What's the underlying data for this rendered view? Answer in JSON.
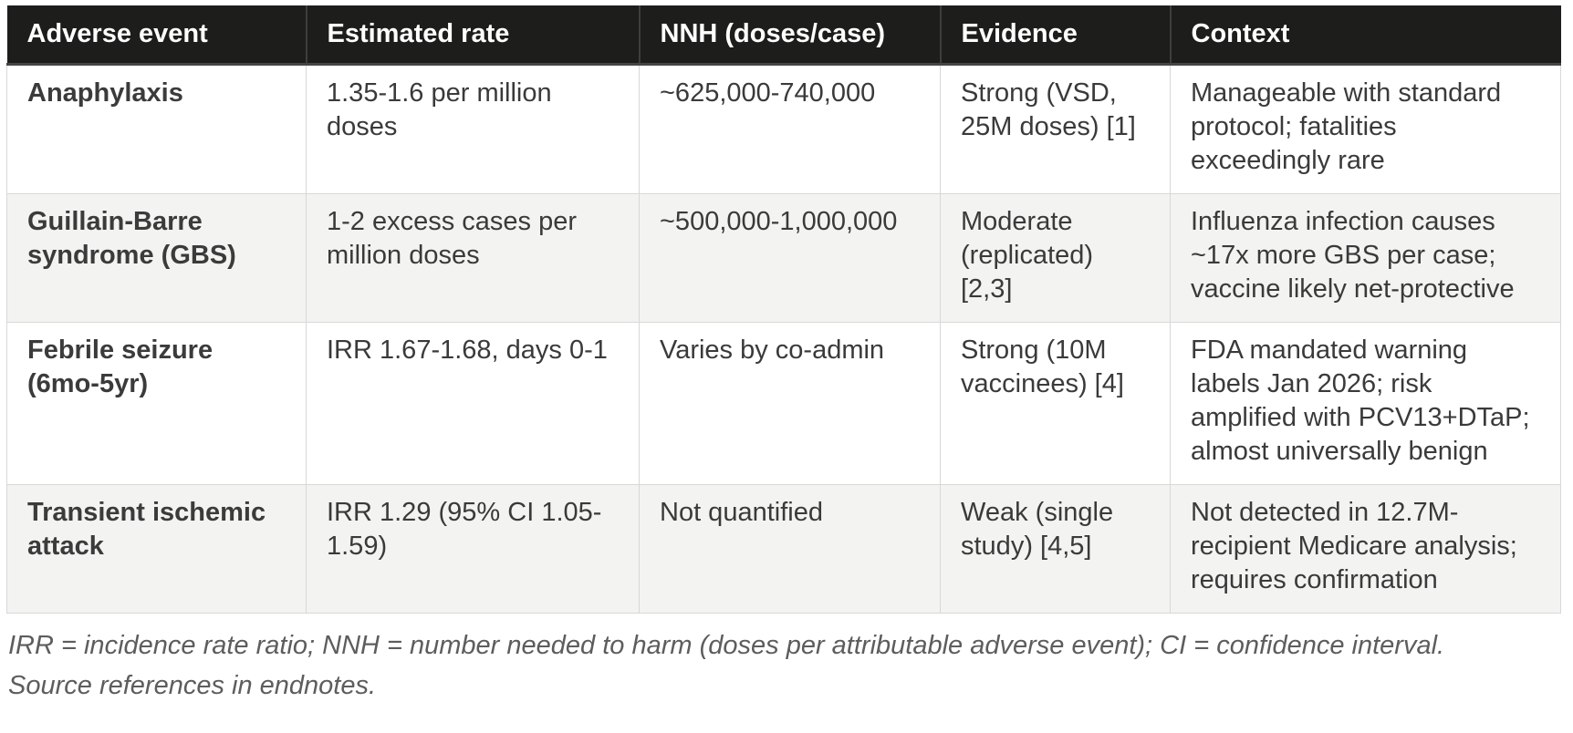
{
  "colors": {
    "header_bg": "#1d1d1b",
    "header_text": "#ffffff",
    "stripe_bg": "#f3f3f1",
    "row_bg": "#ffffff",
    "body_text": "#3a3a3a",
    "border": "#d8d8d5",
    "footnote_text": "#5d5d5d"
  },
  "table": {
    "columns": [
      "Adverse event",
      "Estimated rate",
      "NNH (doses/case)",
      "Evidence",
      "Context"
    ],
    "rows": [
      {
        "cells": [
          "Anaphylaxis",
          "1.35-1.6 per million\ndoses",
          "~625,000-740,000",
          "Strong (VSD,\n25M doses) [1]",
          "Manageable with standard\nprotocol; fatalities\nexceedingly rare"
        ]
      },
      {
        "cells": [
          "Guillain-Barre\nsyndrome (GBS)",
          "1-2 excess cases per\nmillion doses",
          "~500,000-1,000,000",
          "Moderate\n(replicated)\n[2,3]",
          "Influenza infection causes\n~17x more GBS per case;\nvaccine likely net-protective"
        ]
      },
      {
        "cells": [
          "Febrile seizure\n(6mo-5yr)",
          "IRR 1.67-1.68, days 0-1",
          "Varies by co-admin",
          "Strong (10M\nvaccinees) [4]",
          "FDA mandated warning\nlabels Jan 2026; risk\namplified with PCV13+DTaP;\nalmost universally benign"
        ]
      },
      {
        "cells": [
          "Transient ischemic\nattack",
          "IRR 1.29 (95% CI 1.05-\n1.59)",
          "Not quantified",
          "Weak (single\nstudy) [4,5]",
          "Not detected in 12.7M-\nrecipient Medicare analysis;\nrequires confirmation"
        ]
      }
    ]
  },
  "footnote": {
    "line1": "IRR = incidence rate ratio; NNH = number needed to harm (doses per attributable adverse event); CI = confidence interval.",
    "line2": "Source references in endnotes."
  }
}
